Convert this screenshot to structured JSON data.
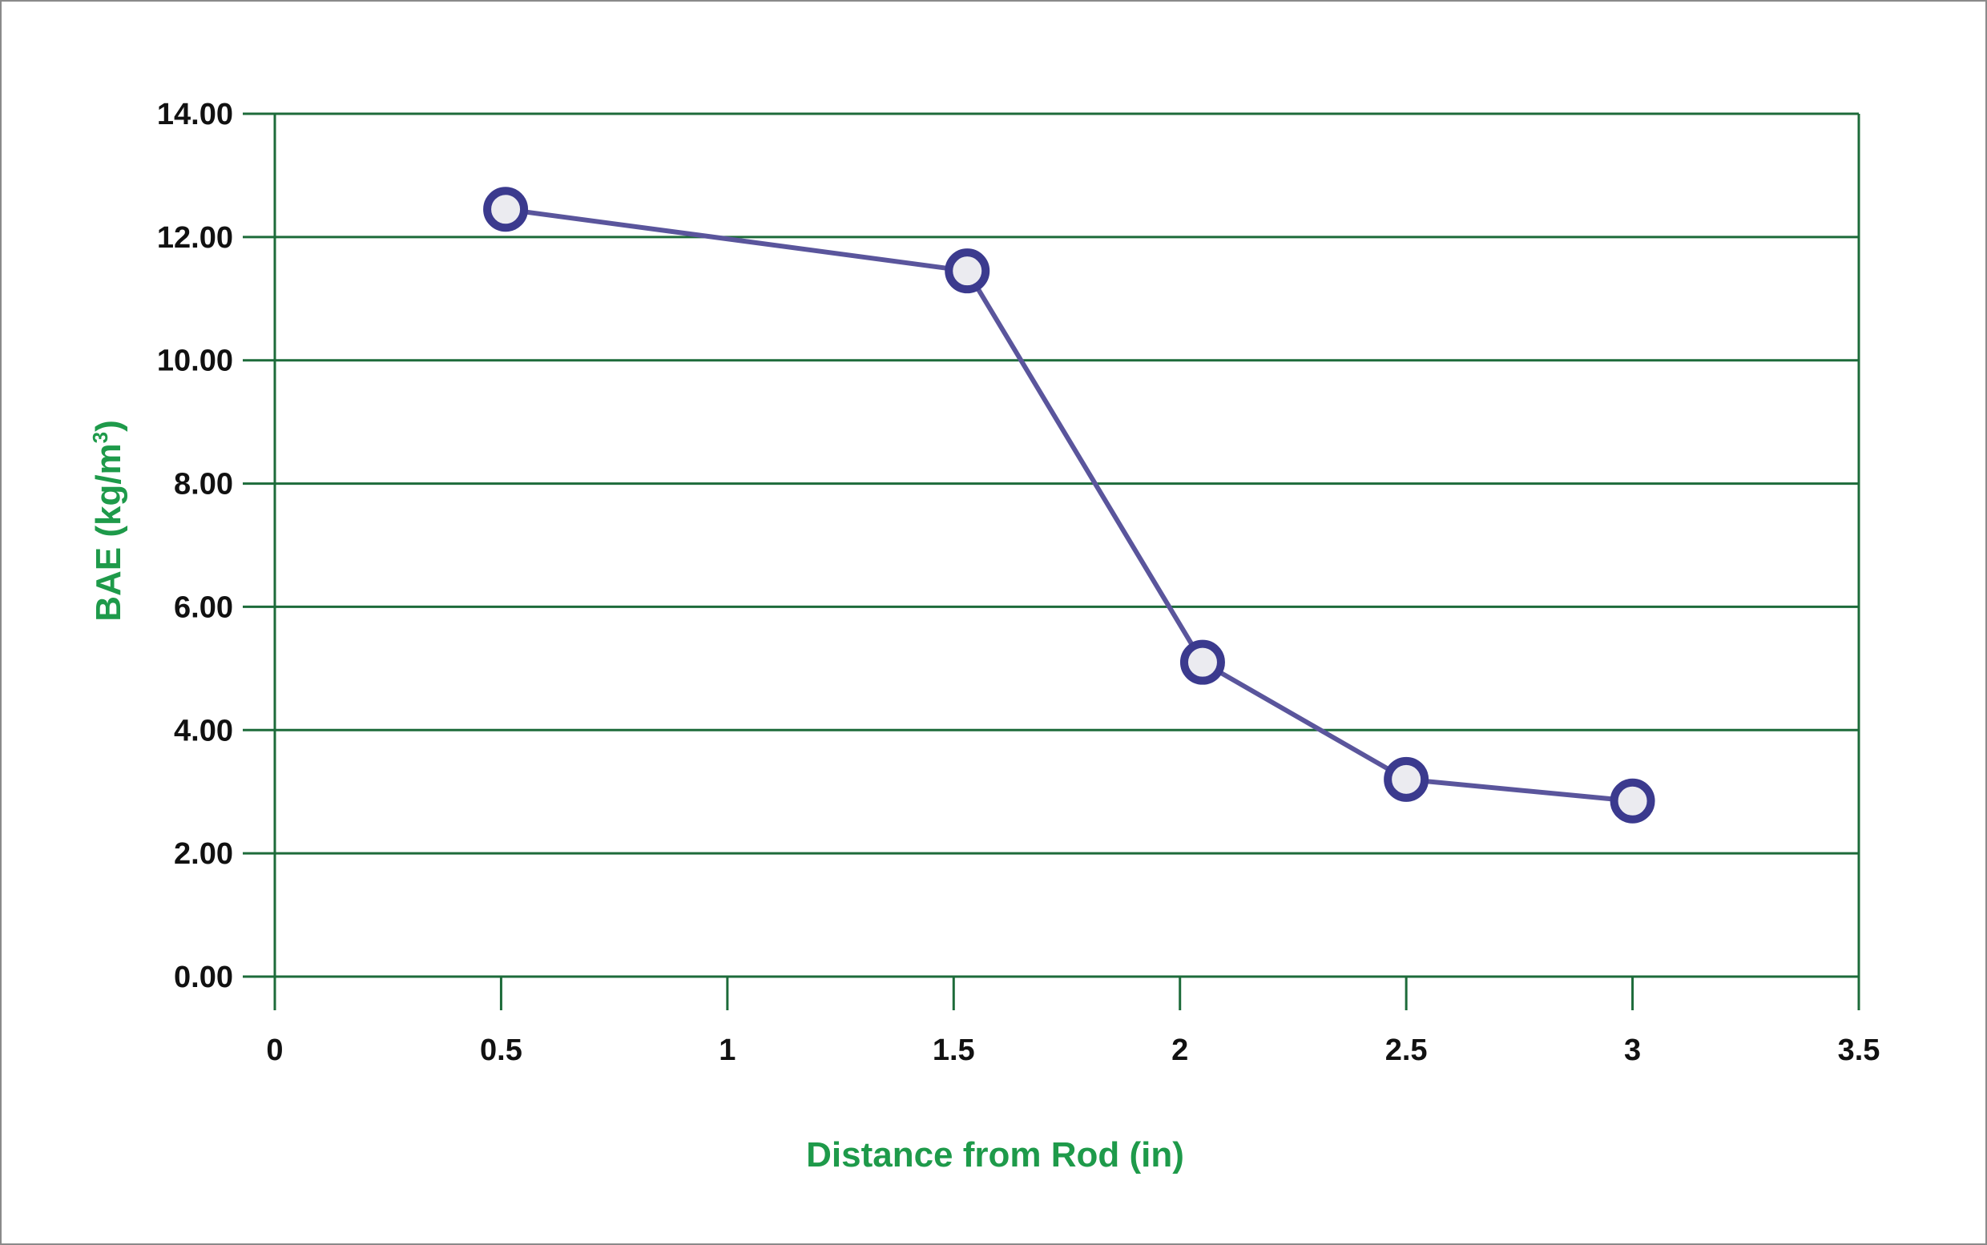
{
  "chart_data": {
    "type": "line",
    "title": "",
    "xlabel": "Distance from Rod (in)",
    "ylabel_main": "BAE (kg/m",
    "ylabel_sup": "3",
    "ylabel_close": ")",
    "xlim": [
      0,
      3.5
    ],
    "ylim": [
      0,
      14
    ],
    "x_ticks": [
      0,
      0.5,
      1,
      1.5,
      2,
      2.5,
      3,
      3.5
    ],
    "x_tick_labels": [
      "0",
      "0.5",
      "1",
      "1.5",
      "2",
      "2.5",
      "3",
      "3.5"
    ],
    "y_ticks": [
      0,
      2,
      4,
      6,
      8,
      10,
      12,
      14
    ],
    "y_tick_labels": [
      "0.00",
      "2.00",
      "4.00",
      "6.00",
      "8.00",
      "10.00",
      "12.00",
      "14.00"
    ],
    "grid": "horizontal",
    "legend": "none",
    "series": [
      {
        "x": [
          0.51,
          1.53,
          2.05,
          2.5,
          3.0
        ],
        "values": [
          12.45,
          11.45,
          5.1,
          3.2,
          2.85
        ]
      }
    ],
    "colors": {
      "grid": "#1d6b3a",
      "line": "#5a559c",
      "marker_stroke": "#3b3a8e",
      "marker_fill": "#ebebf0",
      "axis_title": "#1e9a4a"
    }
  }
}
